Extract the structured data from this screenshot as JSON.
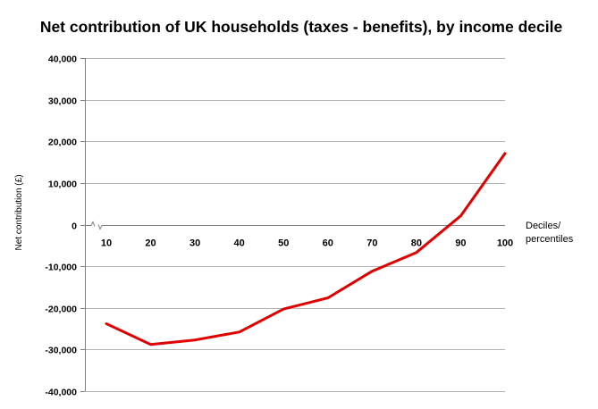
{
  "chart_data": {
    "type": "line",
    "title": "Net contribution of UK households (taxes - benefits), by income decile",
    "ylabel": "Net contribution (£)",
    "xlabel_lines": [
      "Deciles/",
      "percentiles"
    ],
    "x": [
      10,
      20,
      30,
      40,
      50,
      60,
      70,
      80,
      90,
      100
    ],
    "x_tick_labels": [
      "10",
      "20",
      "30",
      "40",
      "50",
      "60",
      "70",
      "80",
      "90",
      "100"
    ],
    "y_tick_labels": [
      "40,000",
      "30,000",
      "20,000",
      "10,000",
      "0",
      "-10,000",
      "-20,000",
      "-30,000",
      "-40,000"
    ],
    "ylim": [
      -40000,
      40000
    ],
    "y_ticks": [
      40000,
      30000,
      20000,
      10000,
      0,
      -10000,
      -20000,
      -30000,
      -40000
    ],
    "grid": true,
    "series": [
      {
        "color": "#e00000",
        "values": [
          -23800,
          -28800,
          -27700,
          -25800,
          -20300,
          -17600,
          -11200,
          -6700,
          2100,
          17100
        ]
      }
    ]
  }
}
